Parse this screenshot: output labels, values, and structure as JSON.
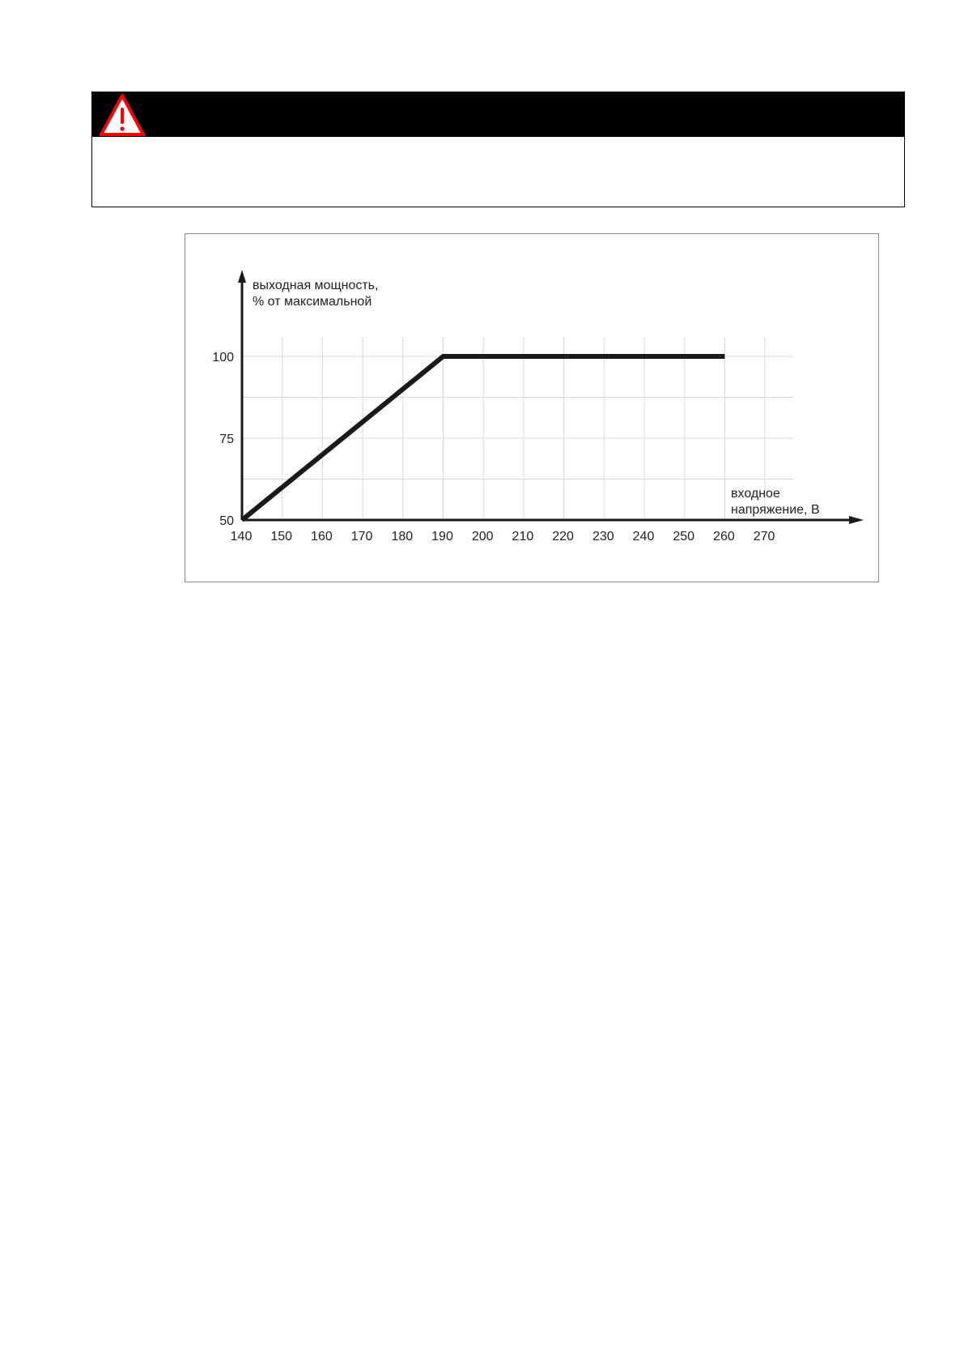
{
  "warning": {
    "icon": "warning-triangle-icon",
    "icon_color": "#ff0000",
    "header_color": "#000000"
  },
  "chart_data": {
    "type": "line",
    "title": "",
    "ylabel_lines": [
      "выходная мощность,",
      "% от максимальной"
    ],
    "xlabel_lines": [
      "входное",
      "напряжение, В"
    ],
    "x_ticks": [
      140,
      150,
      160,
      170,
      180,
      190,
      200,
      210,
      220,
      230,
      240,
      250,
      260,
      270
    ],
    "x_tick_labels": [
      "140",
      "150",
      "160",
      "170",
      "180",
      "190",
      "200",
      "210",
      "220",
      "230",
      "240",
      "250",
      "260",
      "270"
    ],
    "y_ticks": [
      50,
      75,
      100
    ],
    "y_tick_labels": [
      "50",
      "75",
      "100"
    ],
    "xlim": [
      140,
      277
    ],
    "ylim": [
      50,
      106
    ],
    "grid": true,
    "series": [
      {
        "x": [
          140,
          190,
          260
        ],
        "y": [
          50,
          100,
          100
        ]
      }
    ]
  }
}
